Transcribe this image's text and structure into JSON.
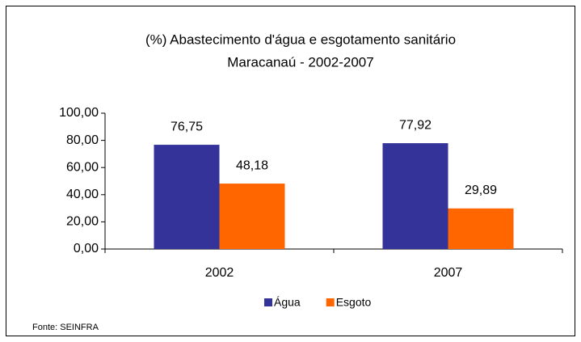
{
  "chart_data": {
    "type": "bar",
    "title": [
      "(%) Abastecimento d'água e esgotamento sanitário",
      "Maracanaú - 2002-2007"
    ],
    "categories": [
      "2002",
      "2007"
    ],
    "series": [
      {
        "name": "Água",
        "color": "#333399",
        "values": [
          76.75,
          77.92
        ],
        "value_labels": [
          "76,75",
          "77,92"
        ]
      },
      {
        "name": "Esgoto",
        "color": "#ff6600",
        "values": [
          48.18,
          29.89
        ],
        "value_labels": [
          "48,18",
          "29,89"
        ]
      }
    ],
    "ylim": [
      0,
      100
    ],
    "yticks": [
      {
        "value": 0,
        "label": "0,00"
      },
      {
        "value": 20,
        "label": "20,00"
      },
      {
        "value": 40,
        "label": "40,00"
      },
      {
        "value": 60,
        "label": "60,00"
      },
      {
        "value": 80,
        "label": "80,00"
      },
      {
        "value": 100,
        "label": "100,00"
      }
    ],
    "legend": "bottom",
    "source": "Fonte: SEINFRA"
  }
}
